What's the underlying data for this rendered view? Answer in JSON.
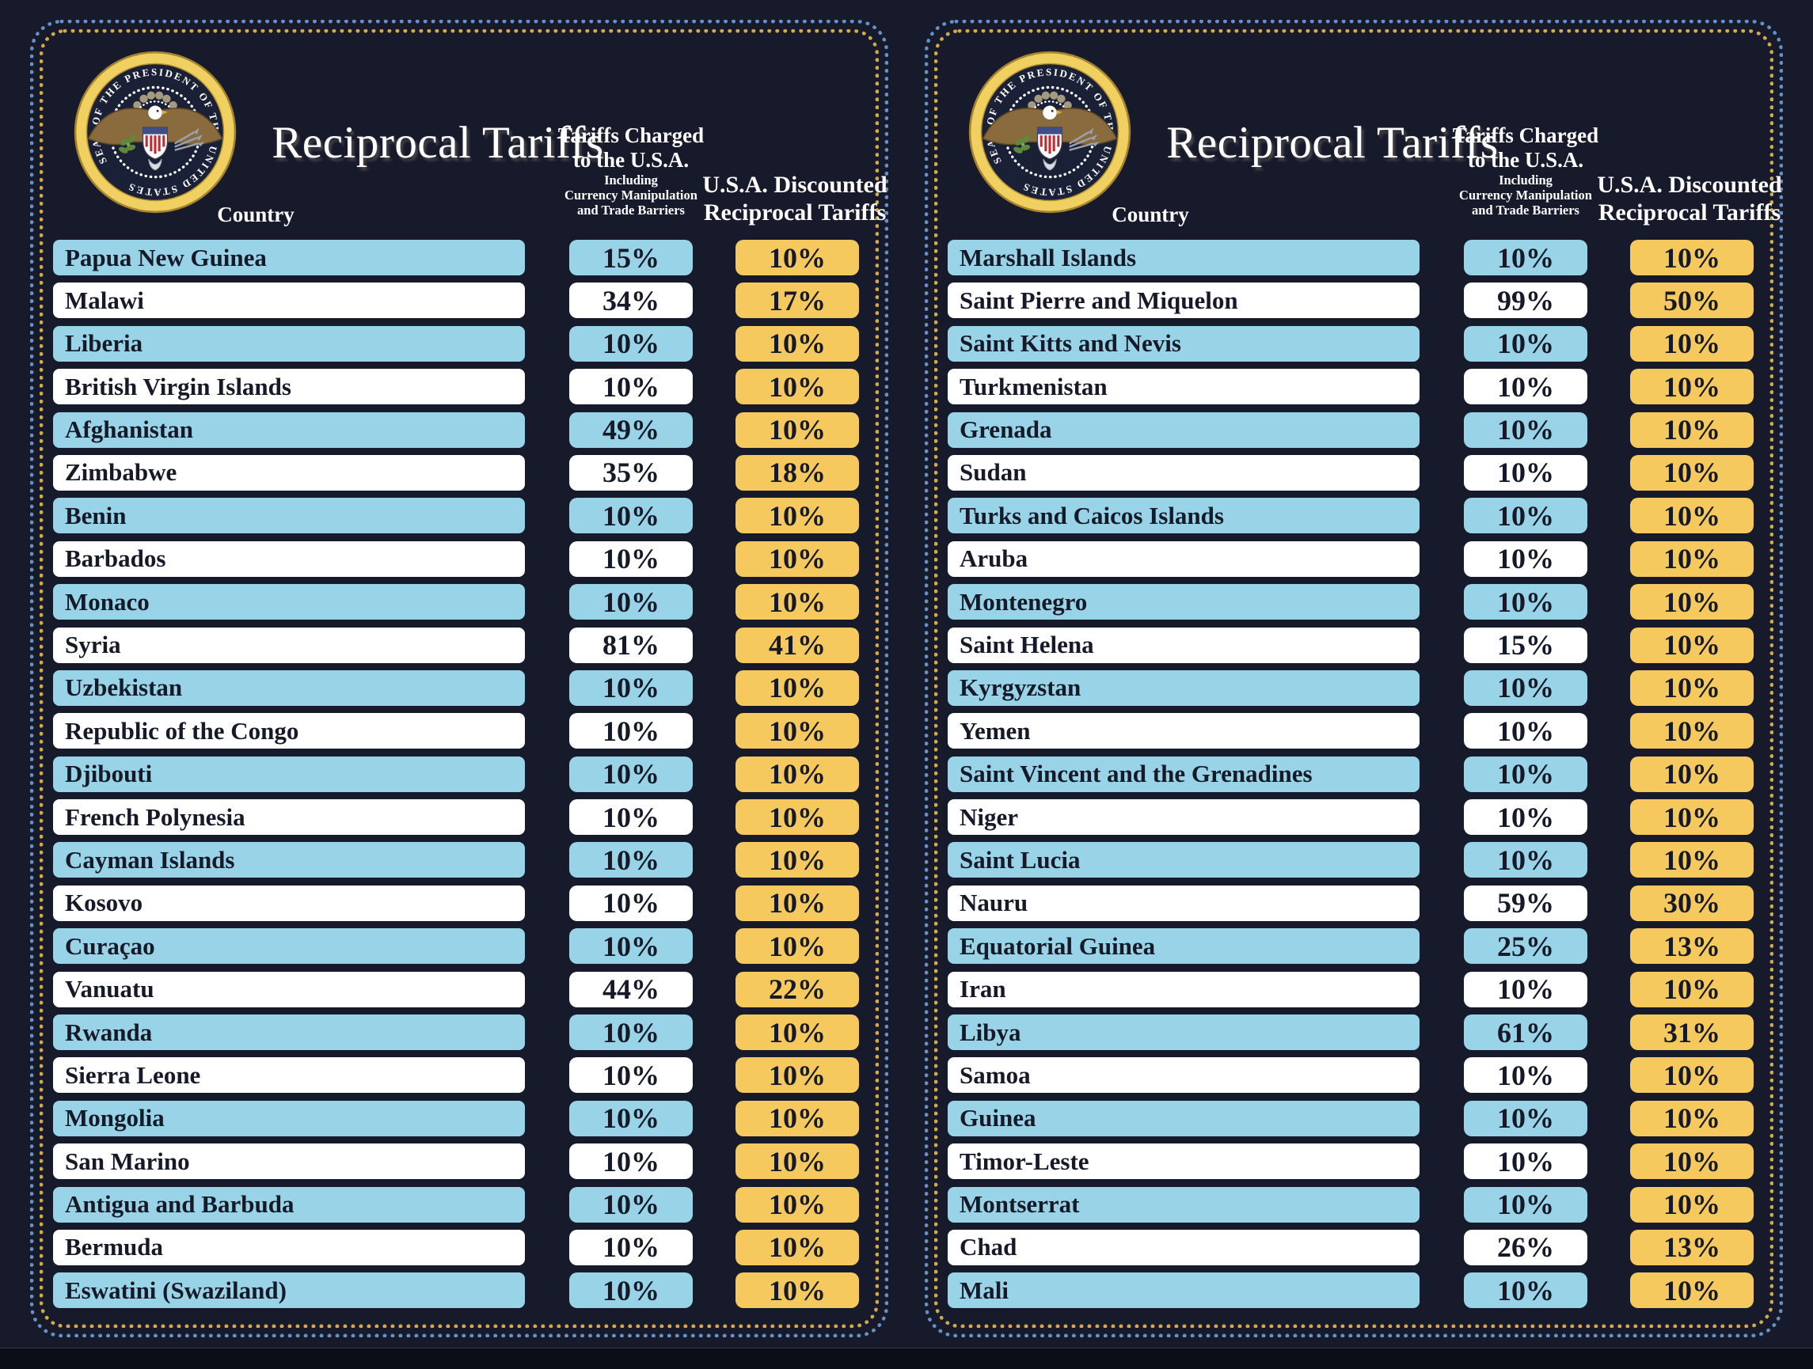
{
  "shared": {
    "title": "Reciprocal Tariffs",
    "col_country": "Country",
    "col_charged_l1": "Tariffs Charged",
    "col_charged_l2": "to the U.S.A.",
    "col_charged_sub1": "Including",
    "col_charged_sub2": "Currency Manipulation",
    "col_charged_sub3": "and Trade Barriers",
    "col_disc_l1": "U.S.A. Discounted",
    "col_disc_l2": "Reciprocal Tariffs",
    "seal_text": "SEAL OF THE PRESIDENT OF THE UNITED STATES"
  },
  "colors": {
    "background": "#171a2b",
    "row_blue": "#98d3e7",
    "row_white": "#ffffff",
    "discount_gold": "#f5c95e",
    "border_dot_blue": "#6691c6",
    "border_dot_yellow": "#d3a94a",
    "text_dark": "#161927",
    "text_white": "#ffffff",
    "seal_gold": "#f0d060"
  },
  "chart_data": [
    {
      "type": "table",
      "title": "Reciprocal Tariffs",
      "columns": [
        "Country",
        "Tariffs Charged to the U.S.A. Including Currency Manipulation and Trade Barriers",
        "U.S.A. Discounted Reciprocal Tariffs"
      ],
      "rows": [
        {
          "country": "Papua New Guinea",
          "charged": "15%",
          "discounted": "10%"
        },
        {
          "country": "Malawi",
          "charged": "34%",
          "discounted": "17%"
        },
        {
          "country": "Liberia",
          "charged": "10%",
          "discounted": "10%"
        },
        {
          "country": "British Virgin Islands",
          "charged": "10%",
          "discounted": "10%"
        },
        {
          "country": "Afghanistan",
          "charged": "49%",
          "discounted": "10%"
        },
        {
          "country": "Zimbabwe",
          "charged": "35%",
          "discounted": "18%"
        },
        {
          "country": "Benin",
          "charged": "10%",
          "discounted": "10%"
        },
        {
          "country": "Barbados",
          "charged": "10%",
          "discounted": "10%"
        },
        {
          "country": "Monaco",
          "charged": "10%",
          "discounted": "10%"
        },
        {
          "country": "Syria",
          "charged": "81%",
          "discounted": "41%"
        },
        {
          "country": "Uzbekistan",
          "charged": "10%",
          "discounted": "10%"
        },
        {
          "country": "Republic of the Congo",
          "charged": "10%",
          "discounted": "10%"
        },
        {
          "country": "Djibouti",
          "charged": "10%",
          "discounted": "10%"
        },
        {
          "country": "French Polynesia",
          "charged": "10%",
          "discounted": "10%"
        },
        {
          "country": "Cayman Islands",
          "charged": "10%",
          "discounted": "10%"
        },
        {
          "country": "Kosovo",
          "charged": "10%",
          "discounted": "10%"
        },
        {
          "country": "Curaçao",
          "charged": "10%",
          "discounted": "10%"
        },
        {
          "country": "Vanuatu",
          "charged": "44%",
          "discounted": "22%"
        },
        {
          "country": "Rwanda",
          "charged": "10%",
          "discounted": "10%"
        },
        {
          "country": "Sierra Leone",
          "charged": "10%",
          "discounted": "10%"
        },
        {
          "country": "Mongolia",
          "charged": "10%",
          "discounted": "10%"
        },
        {
          "country": "San Marino",
          "charged": "10%",
          "discounted": "10%"
        },
        {
          "country": "Antigua and Barbuda",
          "charged": "10%",
          "discounted": "10%"
        },
        {
          "country": "Bermuda",
          "charged": "10%",
          "discounted": "10%"
        },
        {
          "country": "Eswatini (Swaziland)",
          "charged": "10%",
          "discounted": "10%"
        }
      ]
    },
    {
      "type": "table",
      "title": "Reciprocal Tariffs",
      "columns": [
        "Country",
        "Tariffs Charged to the U.S.A. Including Currency Manipulation and Trade Barriers",
        "U.S.A. Discounted Reciprocal Tariffs"
      ],
      "rows": [
        {
          "country": "Marshall Islands",
          "charged": "10%",
          "discounted": "10%"
        },
        {
          "country": "Saint Pierre and Miquelon",
          "charged": "99%",
          "discounted": "50%"
        },
        {
          "country": "Saint Kitts and Nevis",
          "charged": "10%",
          "discounted": "10%"
        },
        {
          "country": "Turkmenistan",
          "charged": "10%",
          "discounted": "10%"
        },
        {
          "country": "Grenada",
          "charged": "10%",
          "discounted": "10%"
        },
        {
          "country": "Sudan",
          "charged": "10%",
          "discounted": "10%"
        },
        {
          "country": "Turks and Caicos Islands",
          "charged": "10%",
          "discounted": "10%"
        },
        {
          "country": "Aruba",
          "charged": "10%",
          "discounted": "10%"
        },
        {
          "country": "Montenegro",
          "charged": "10%",
          "discounted": "10%"
        },
        {
          "country": "Saint Helena",
          "charged": "15%",
          "discounted": "10%"
        },
        {
          "country": "Kyrgyzstan",
          "charged": "10%",
          "discounted": "10%"
        },
        {
          "country": "Yemen",
          "charged": "10%",
          "discounted": "10%"
        },
        {
          "country": "Saint Vincent and the Grenadines",
          "charged": "10%",
          "discounted": "10%"
        },
        {
          "country": "Niger",
          "charged": "10%",
          "discounted": "10%"
        },
        {
          "country": "Saint Lucia",
          "charged": "10%",
          "discounted": "10%"
        },
        {
          "country": "Nauru",
          "charged": "59%",
          "discounted": "30%"
        },
        {
          "country": "Equatorial Guinea",
          "charged": "25%",
          "discounted": "13%"
        },
        {
          "country": "Iran",
          "charged": "10%",
          "discounted": "10%"
        },
        {
          "country": "Libya",
          "charged": "61%",
          "discounted": "31%"
        },
        {
          "country": "Samoa",
          "charged": "10%",
          "discounted": "10%"
        },
        {
          "country": "Guinea",
          "charged": "10%",
          "discounted": "10%"
        },
        {
          "country": "Timor-Leste",
          "charged": "10%",
          "discounted": "10%"
        },
        {
          "country": "Montserrat",
          "charged": "10%",
          "discounted": "10%"
        },
        {
          "country": "Chad",
          "charged": "26%",
          "discounted": "13%"
        },
        {
          "country": "Mali",
          "charged": "10%",
          "discounted": "10%"
        }
      ]
    }
  ]
}
